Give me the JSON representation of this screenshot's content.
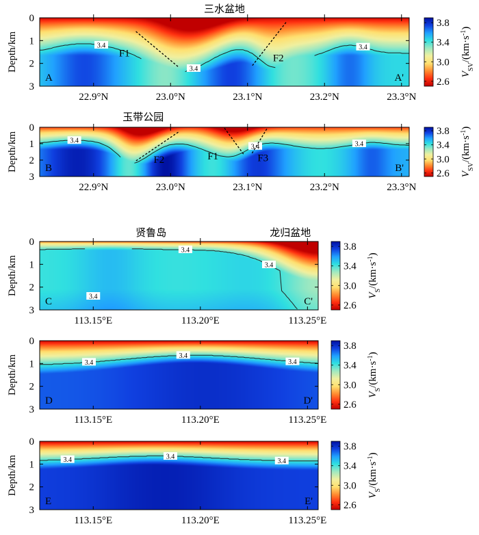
{
  "colorscale": {
    "colors": [
      "#c00000",
      "#ff3010",
      "#ff8c30",
      "#ffe070",
      "#f0f0a0",
      "#a0e8c0",
      "#30e0e0",
      "#20a0ff",
      "#1040e0",
      "#0010a0"
    ],
    "vmin": 2.5,
    "vmax": 3.9,
    "ticks": [
      "3.8",
      "3.4",
      "3.0",
      "2.6"
    ],
    "tick_values": [
      3.8,
      3.4,
      3.0,
      2.6
    ]
  },
  "chart_data": [
    {
      "id": "A",
      "type": "heatmap",
      "top_labels": [
        "三水盆地"
      ],
      "corner_left": "A",
      "corner_right": "A'",
      "ylabel": "Depth/km",
      "colorbar_label_main": "V",
      "colorbar_label_sub": "SV",
      "colorbar_label_unit": "/(km·s",
      "colorbar_label_exp": "-1",
      "colorbar_label_close": ")",
      "xlim": [
        22.83,
        23.31
      ],
      "ylim": [
        0,
        3
      ],
      "xticks": [
        22.9,
        23.0,
        23.1,
        23.2,
        23.3
      ],
      "xtick_labels": [
        "22.9°N",
        "23.0°N",
        "23.1°N",
        "23.2°N",
        "23.3°N"
      ],
      "yticks": [
        0,
        1,
        2,
        3
      ],
      "ytick_labels": [
        "0",
        "1",
        "2",
        "3"
      ],
      "contour_level": "3.4",
      "contour_label_x": [
        22.91,
        23.03,
        23.25
      ],
      "faults": [
        {
          "name": "F1",
          "x1": 22.955,
          "y1": 0.6,
          "x2": 23.01,
          "y2": 2.15,
          "label_x": 22.94,
          "label_y": 1.55
        },
        {
          "name": "F2",
          "x1": 23.15,
          "y1": 0.2,
          "x2": 23.105,
          "y2": 2.15,
          "label_x": 23.14,
          "label_y": 1.75
        }
      ]
    },
    {
      "id": "B",
      "type": "heatmap",
      "top_labels": [
        "玉带公园"
      ],
      "corner_left": "B",
      "corner_right": "B'",
      "ylabel": "Depth/km",
      "colorbar_label_main": "V",
      "colorbar_label_sub": "SV",
      "colorbar_label_unit": "/(km·s",
      "colorbar_label_exp": "-1",
      "colorbar_label_close": ")",
      "xlim": [
        22.83,
        23.31
      ],
      "ylim": [
        0,
        3
      ],
      "xticks": [
        22.9,
        23.0,
        23.1,
        23.2,
        23.3
      ],
      "xtick_labels": [
        "22.9°N",
        "23.0°N",
        "23.1°N",
        "23.2°N",
        "23.3°N"
      ],
      "yticks": [
        0,
        1,
        2,
        3
      ],
      "ytick_labels": [
        "0",
        "1",
        "2",
        "3"
      ],
      "contour_level": "3.4",
      "contour_label_x": [
        22.875,
        23.11,
        23.245
      ],
      "faults": [
        {
          "name": "F2",
          "x1": 23.01,
          "y1": 0.3,
          "x2": 22.955,
          "y2": 2.05,
          "label_x": 22.985,
          "label_y": 1.95
        },
        {
          "name": "F1",
          "x1": 23.07,
          "y1": 0.05,
          "x2": 23.095,
          "y2": 1.65,
          "label_x": 23.055,
          "label_y": 1.75
        },
        {
          "name": "F3",
          "x1": 23.125,
          "y1": 0.1,
          "x2": 23.105,
          "y2": 1.65,
          "label_x": 23.12,
          "label_y": 1.85
        }
      ]
    },
    {
      "id": "C",
      "type": "heatmap",
      "top_labels": [
        "贤鲁岛",
        "龙归盆地"
      ],
      "corner_left": "C",
      "corner_right": "C'",
      "ylabel": "Depth/km",
      "colorbar_label_main": "V",
      "colorbar_label_sub": "S",
      "colorbar_label_unit": "/(km·s",
      "colorbar_label_exp": "-1",
      "colorbar_label_close": ")",
      "xlim": [
        113.125,
        113.255
      ],
      "ylim": [
        0,
        3
      ],
      "xticks": [
        113.15,
        113.2,
        113.25
      ],
      "xtick_labels": [
        "113.15°E",
        "113.20°E",
        "113.25°E"
      ],
      "yticks": [
        0,
        1,
        2,
        3
      ],
      "ytick_labels": [
        "0",
        "1",
        "2",
        "3"
      ],
      "contour_level": "3.4",
      "contour_label_x": [
        113.15,
        113.193,
        113.232
      ],
      "faults": []
    },
    {
      "id": "D",
      "type": "heatmap",
      "top_labels": [],
      "corner_left": "D",
      "corner_right": "D'",
      "ylabel": "Depth/km",
      "colorbar_label_main": "V",
      "colorbar_label_sub": "S",
      "colorbar_label_unit": "/(km·s",
      "colorbar_label_exp": "-1",
      "colorbar_label_close": ")",
      "xlim": [
        113.125,
        113.255
      ],
      "ylim": [
        0,
        3
      ],
      "xticks": [
        113.15,
        113.2,
        113.25
      ],
      "xtick_labels": [
        "113.15°E",
        "113.20°E",
        "113.25°E"
      ],
      "yticks": [
        0,
        1,
        2,
        3
      ],
      "ytick_labels": [
        "0",
        "1",
        "2",
        "3"
      ],
      "contour_level": "3.4",
      "contour_label_x": [
        113.148,
        113.192,
        113.243
      ],
      "faults": []
    },
    {
      "id": "E",
      "type": "heatmap",
      "top_labels": [],
      "corner_left": "E",
      "corner_right": "E'",
      "ylabel": "Depth/km",
      "colorbar_label_main": "V",
      "colorbar_label_sub": "S",
      "colorbar_label_unit": "/(km·s",
      "colorbar_label_exp": "-1",
      "colorbar_label_close": ")",
      "xlim": [
        113.125,
        113.255
      ],
      "ylim": [
        0,
        3
      ],
      "xticks": [
        113.15,
        113.2,
        113.25
      ],
      "xtick_labels": [
        "113.15°E",
        "113.20°E",
        "113.25°E"
      ],
      "yticks": [
        0,
        1,
        2,
        3
      ],
      "ytick_labels": [
        "0",
        "1",
        "2",
        "3"
      ],
      "contour_level": "3.4",
      "contour_label_x": [
        113.138,
        113.186,
        113.238
      ],
      "faults": []
    }
  ]
}
